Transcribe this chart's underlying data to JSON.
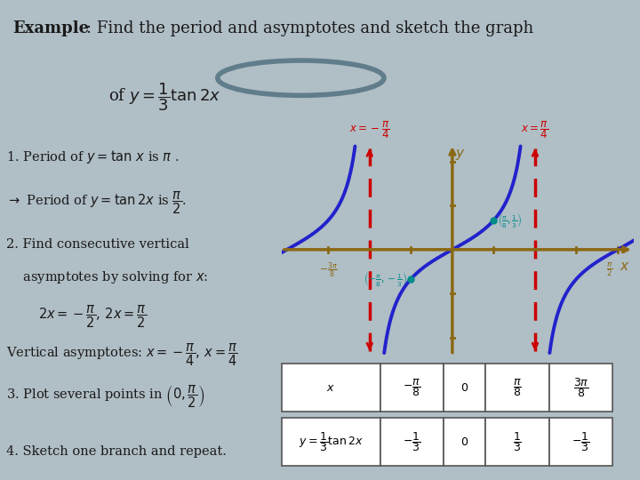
{
  "title_bold": "Example",
  "title_rest": ": Find the period and asymptotes and sketch the graph",
  "subtitle": "of $y = \\dfrac{1}{3}\\tan 2x$",
  "bg_color_top": "#e8e8e8",
  "bg_color_bottom": "#b0bec5",
  "text_color": "#1a1a2e",
  "red_color": "#cc0000",
  "blue_color": "#1a1aff",
  "axis_color": "#8B6914",
  "teal_color": "#008080",
  "step1": "1. Period of $y = \\tan\\, x$ is $\\pi$ .",
  "step1b": "$\\rightarrow$ Period of $y = \\tan 2x$ is $\\dfrac{\\pi}{2}$.",
  "step2": "2. Find consecutive vertical",
  "step2b": "    asymptotes by solving for $x$:",
  "step2c": "$2x = -\\dfrac{\\pi}{2},\\, 2x = \\dfrac{\\pi}{2}$",
  "step2d": "Vertical asymptotes: $x = -\\dfrac{\\pi}{4},\\, x = \\dfrac{\\pi}{4}$",
  "step3": "3. Plot several points in $\\left(0, \\dfrac{\\pi}{2}\\right)$",
  "step4": "4. Sketch one branch and repeat.",
  "table_x_header": "$x$",
  "table_y_header": "$y = \\dfrac{1}{3}\\tan 2x$",
  "table_x_vals": [
    "$-\\dfrac{\\pi}{8}$",
    "$0$",
    "$\\dfrac{\\pi}{8}$",
    "$\\dfrac{3\\pi}{8}$"
  ],
  "table_y_vals": [
    "$-\\dfrac{1}{3}$",
    "$0$",
    "$\\dfrac{1}{3}$",
    "$-\\dfrac{1}{3}$"
  ],
  "asym_label_left": "$x = -\\dfrac{\\pi}{4}$",
  "asym_label_right": "$x = \\dfrac{\\pi}{4}$",
  "y_label": "$y$",
  "x_label": "$x$",
  "plot_bg": "#c5cfd6"
}
